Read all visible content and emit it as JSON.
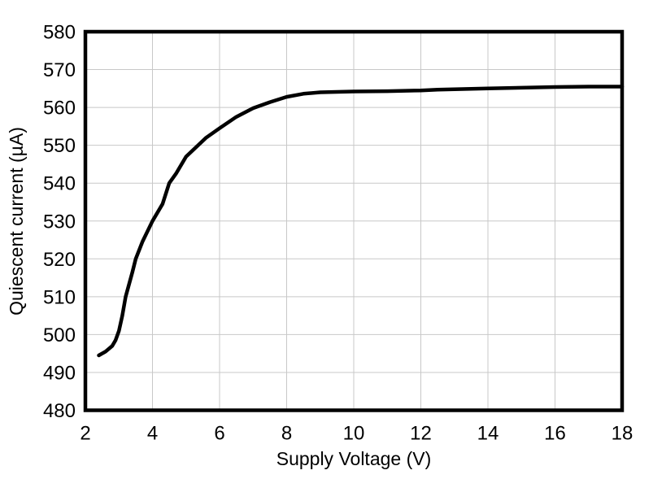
{
  "chart_data": {
    "type": "line",
    "title": "",
    "xlabel": "Supply Voltage (V)",
    "ylabel": "Quiescent current (µA)",
    "xlim": [
      2,
      18
    ],
    "ylim": [
      480,
      580
    ],
    "xticks": [
      2,
      4,
      6,
      8,
      10,
      12,
      14,
      16,
      18
    ],
    "yticks": [
      480,
      490,
      500,
      510,
      520,
      530,
      540,
      550,
      560,
      570,
      580
    ],
    "grid": true,
    "legend": false,
    "colors": {
      "line": "#000000",
      "frame": "#000000",
      "gridline": "#c8c8c8",
      "text": "#000000",
      "background": "#ffffff"
    },
    "series": [
      {
        "name": "quiescent-current",
        "x": [
          2.4,
          2.6,
          2.8,
          2.9,
          3.0,
          3.1,
          3.2,
          3.4,
          3.5,
          3.7,
          4.0,
          4.3,
          4.5,
          4.7,
          5.0,
          5.3,
          5.6,
          6.0,
          6.5,
          7.0,
          7.5,
          8.0,
          8.5,
          9.0,
          10.0,
          11.0,
          12.0,
          12.5,
          13.0,
          14.0,
          15.0,
          16.0,
          17.0,
          18.0
        ],
        "y": [
          494.5,
          495.5,
          497.0,
          498.5,
          501.0,
          505.0,
          510.0,
          516.5,
          520.0,
          524.5,
          530.0,
          534.5,
          540.0,
          542.5,
          547.0,
          549.5,
          552.0,
          554.5,
          557.5,
          559.8,
          561.4,
          562.8,
          563.6,
          564.0,
          564.2,
          564.3,
          564.5,
          564.7,
          564.8,
          565.0,
          565.2,
          565.4,
          565.5,
          565.5
        ]
      }
    ]
  }
}
